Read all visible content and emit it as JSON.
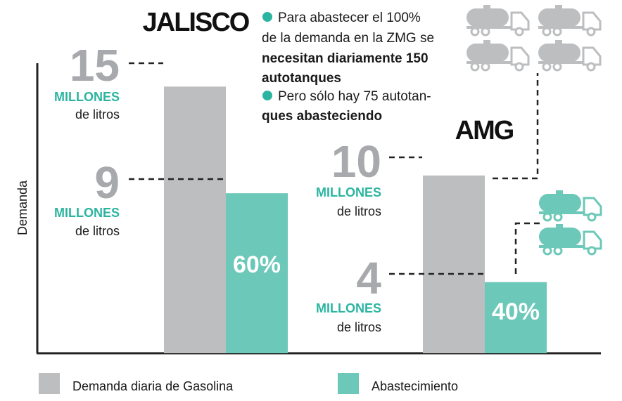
{
  "chart_data": {
    "type": "bar",
    "ylabel": "Demanda",
    "categories": [
      "JALISCO",
      "AMG"
    ],
    "series": [
      {
        "name": "Demanda diaria de Gasolina",
        "values": [
          15,
          10
        ],
        "color": "#bcbec0"
      },
      {
        "name": "Abastecimiento",
        "values": [
          9,
          4
        ],
        "color": "#6cc8b8"
      }
    ],
    "ylim": [
      0,
      17.5
    ],
    "value_labels": [
      {
        "category": "JALISCO",
        "series": "Demanda diaria de Gasolina",
        "number": "15",
        "unit_line1": "MILLONES",
        "unit_line2": "de litros"
      },
      {
        "category": "JALISCO",
        "series": "Abastecimiento",
        "number": "9",
        "unit_line1": "MILLONES",
        "unit_line2": "de litros"
      },
      {
        "category": "AMG",
        "series": "Demanda diaria de Gasolina",
        "number": "10",
        "unit_line1": "MILLONES",
        "unit_line2": "de litros"
      },
      {
        "category": "AMG",
        "series": "Abastecimiento",
        "number": "4",
        "unit_line1": "MILLONES",
        "unit_line2": "de litros"
      }
    ],
    "percent_labels": [
      "60%",
      "40%"
    ],
    "legend": {
      "placement": "bottom"
    }
  },
  "notes": [
    {
      "lines": [
        "Para abastecer el 100%",
        "de la demanda en la ZMG se",
        "necesitan diariamente 150",
        "autotanques"
      ],
      "bold_from_line": 2
    },
    {
      "lines": [
        "Pero sólo hay 75 autotan-",
        "ques abasteciendo"
      ],
      "bold_from_line": 1
    }
  ],
  "trucks": {
    "gray_count": 4,
    "teal_count": 2,
    "gray_color": "#bcbec0",
    "teal_color": "#6cc8b8"
  },
  "colors": {
    "accent": "#2bb5a0",
    "bullet": "#2bb5a0",
    "axis": "#222222"
  }
}
